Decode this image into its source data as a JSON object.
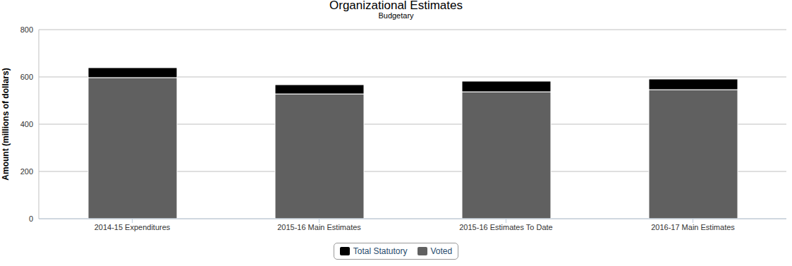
{
  "chart_data": {
    "type": "bar",
    "title": "Organizational Estimates",
    "subtitle": "Budgetary",
    "y_label": "Amount (millions of dollars)",
    "categories": [
      "2014-15 Expenditures",
      "2015-16 Main Estimates",
      "2015-16 Estimates To Date",
      "2016-17 Main Estimates"
    ],
    "series": [
      {
        "name": "Total Statutory",
        "color": "#000000",
        "values": [
          42,
          39,
          45,
          45
        ]
      },
      {
        "name": "Voted",
        "color": "#606060",
        "values": [
          597,
          528,
          537,
          546
        ]
      }
    ],
    "ylim": [
      0,
      800
    ],
    "yticks": [
      0,
      200,
      400,
      600,
      800
    ],
    "stacked": true,
    "grid": true,
    "legend": "bottom"
  }
}
